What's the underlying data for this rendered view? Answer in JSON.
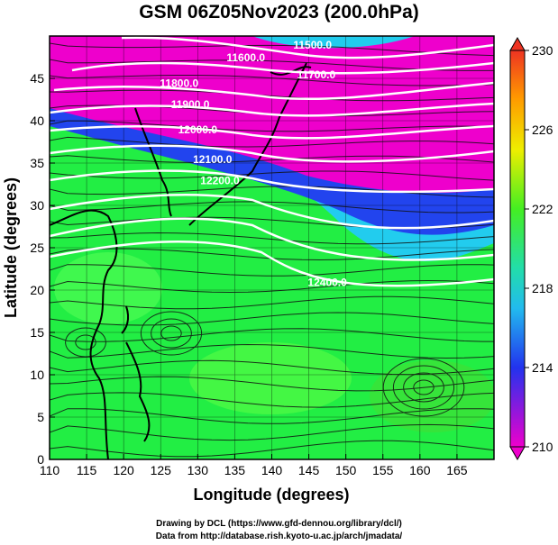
{
  "title": "GSM 06Z05Nov2023 (200.0hPa)",
  "x_axis": {
    "label": "Longitude (degrees)",
    "ticks": [
      110,
      115,
      120,
      125,
      130,
      135,
      140,
      145,
      150,
      155,
      160,
      165
    ]
  },
  "y_axis": {
    "label": "Latitude  (degrees)",
    "ticks": [
      0,
      5,
      10,
      15,
      20,
      25,
      30,
      35,
      40,
      45
    ]
  },
  "colorbar": {
    "ticks": [
      230,
      226,
      222,
      218,
      214,
      210
    ]
  },
  "contour_labels": [
    {
      "text": "11500.0",
      "lon": 145.5,
      "lat": 48.5
    },
    {
      "text": "11600.0",
      "lon": 136.5,
      "lat": 47.0
    },
    {
      "text": "11700.0",
      "lon": 146.0,
      "lat": 45.0
    },
    {
      "text": "11800.0",
      "lon": 127.5,
      "lat": 44.0
    },
    {
      "text": "11900.0",
      "lon": 129.0,
      "lat": 41.5
    },
    {
      "text": "12000.0",
      "lon": 130.0,
      "lat": 38.5
    },
    {
      "text": "12100.0",
      "lon": 132.0,
      "lat": 35.0
    },
    {
      "text": "12200.0",
      "lon": 133.0,
      "lat": 32.5
    },
    {
      "text": "12400.0",
      "lon": 147.5,
      "lat": 20.5
    }
  ],
  "credits": [
    "Drawing by DCL (https://www.gfd-dennou.org/library/dcl/)",
    "Data from http://database.rish.kyoto-u.ac.jp/arch/jmadata/"
  ],
  "colors": {
    "magenta": "#ee00cc",
    "blue": "#2244ee",
    "cyan": "#22ccee",
    "green": "#22ee44",
    "light_green": "#66ff44",
    "land_line": "#000000",
    "contour": "#ffffff"
  }
}
